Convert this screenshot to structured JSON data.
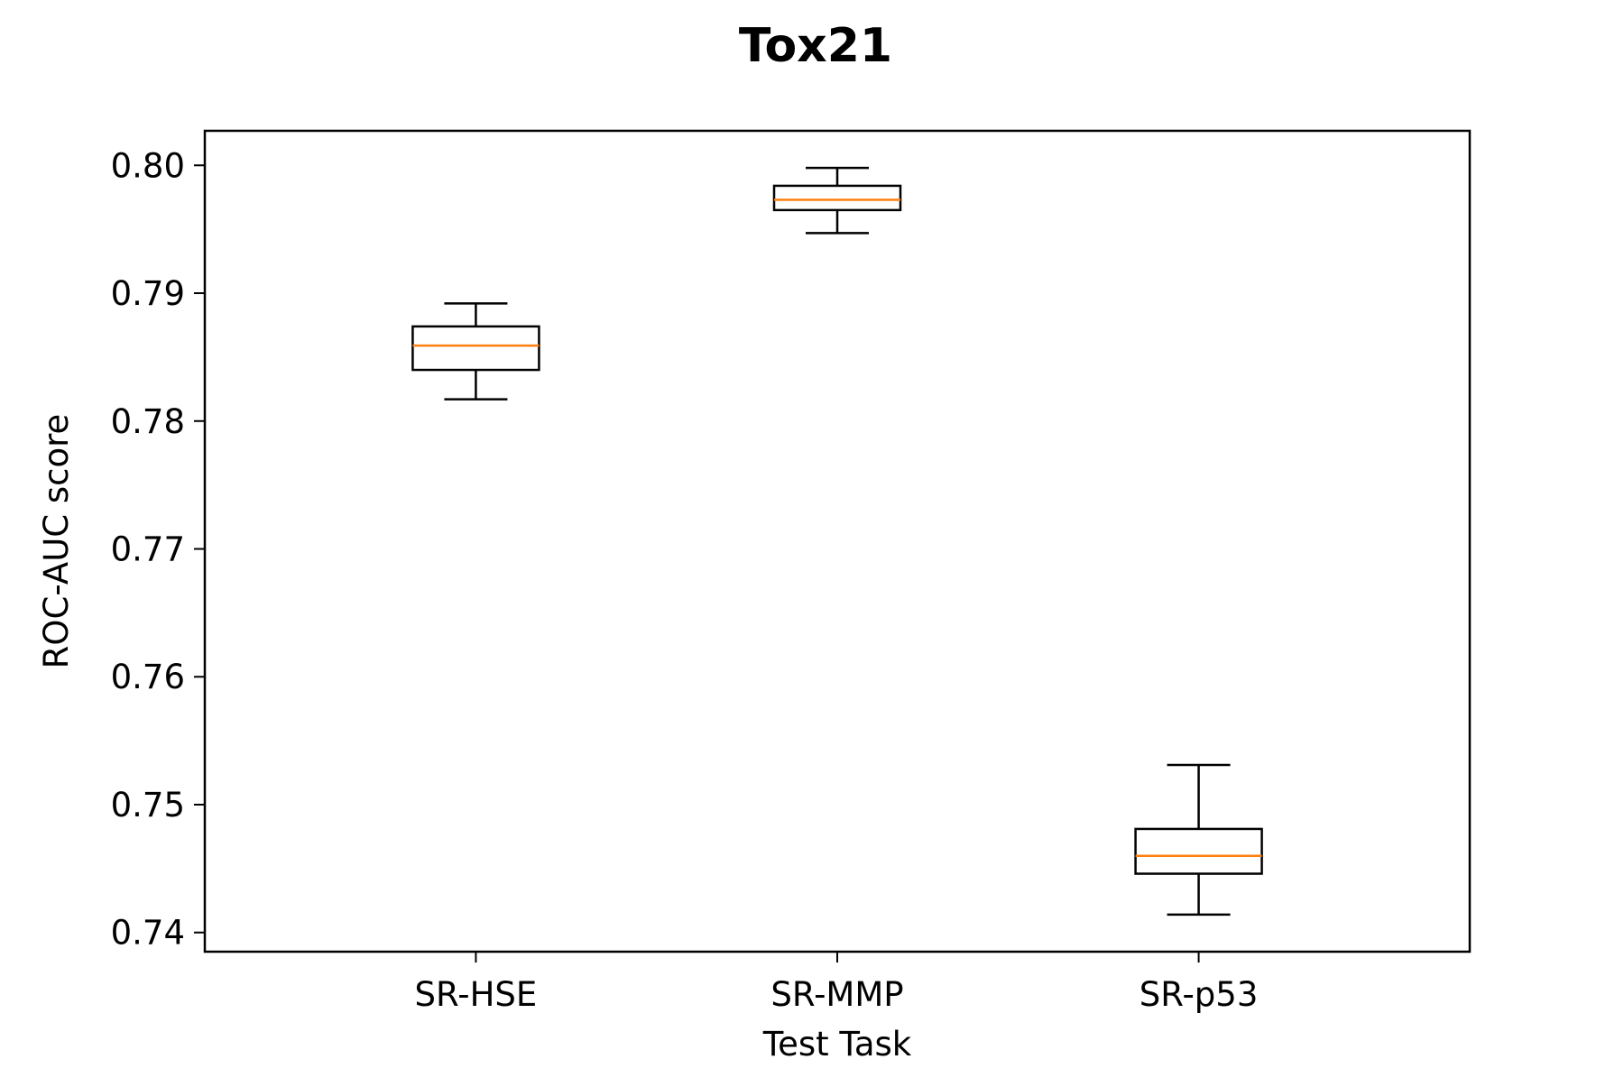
{
  "chart_data": {
    "type": "boxplot",
    "title": "Tox21",
    "xlabel": "Test Task",
    "ylabel": "ROC-AUC score",
    "categories": [
      "SR-HSE",
      "SR-MMP",
      "SR-p53"
    ],
    "boxes": [
      {
        "category": "SR-HSE",
        "whisker_low": 0.7817,
        "q1": 0.784,
        "median": 0.7859,
        "q3": 0.7874,
        "whisker_high": 0.7892
      },
      {
        "category": "SR-MMP",
        "whisker_low": 0.7947,
        "q1": 0.7965,
        "median": 0.7973,
        "q3": 0.7984,
        "whisker_high": 0.7998
      },
      {
        "category": "SR-p53",
        "whisker_low": 0.7414,
        "q1": 0.7446,
        "median": 0.746,
        "q3": 0.7481,
        "whisker_high": 0.7531
      }
    ],
    "yticks": [
      0.74,
      0.75,
      0.76,
      0.77,
      0.78,
      0.79,
      0.8
    ],
    "ytick_labels": [
      "0.74",
      "0.75",
      "0.76",
      "0.77",
      "0.78",
      "0.79",
      "0.80"
    ],
    "ylim": [
      0.7385,
      0.8027
    ],
    "grid": false,
    "colors": {
      "box": "#000000",
      "median": "#ff7f0e",
      "background": "#ffffff"
    }
  }
}
